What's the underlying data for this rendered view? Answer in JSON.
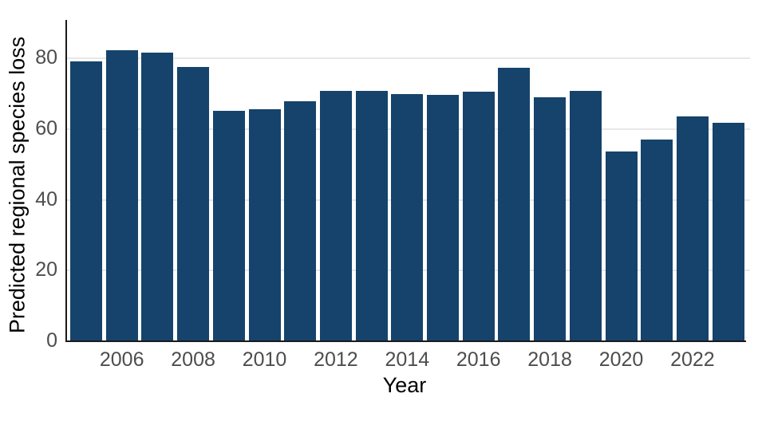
{
  "chart_data": {
    "type": "bar",
    "title": "",
    "xlabel": "Year",
    "ylabel": "Predicted regional species loss",
    "categories": [
      2005,
      2006,
      2007,
      2008,
      2009,
      2010,
      2011,
      2012,
      2013,
      2014,
      2015,
      2016,
      2017,
      2018,
      2019,
      2020,
      2021,
      2022,
      2023
    ],
    "values": [
      78.8,
      82.1,
      81.3,
      77.2,
      65.0,
      65.3,
      67.5,
      70.6,
      70.6,
      69.7,
      69.3,
      70.2,
      77.0,
      68.7,
      70.6,
      53.4,
      56.7,
      63.4,
      61.6
    ],
    "yticks": [
      0,
      20,
      40,
      60,
      80
    ],
    "xtick_years": [
      2006,
      2008,
      2010,
      2012,
      2014,
      2016,
      2018,
      2020,
      2022
    ],
    "ylim": [
      0,
      90
    ],
    "grid": "horizontal-light",
    "legend": "none",
    "colors": {
      "bar": "#15436b",
      "gridline": "#e8e8e8",
      "tick_label": "#4d4d4d",
      "axis_label": "#000000",
      "spine": "#1a1a1a"
    }
  }
}
